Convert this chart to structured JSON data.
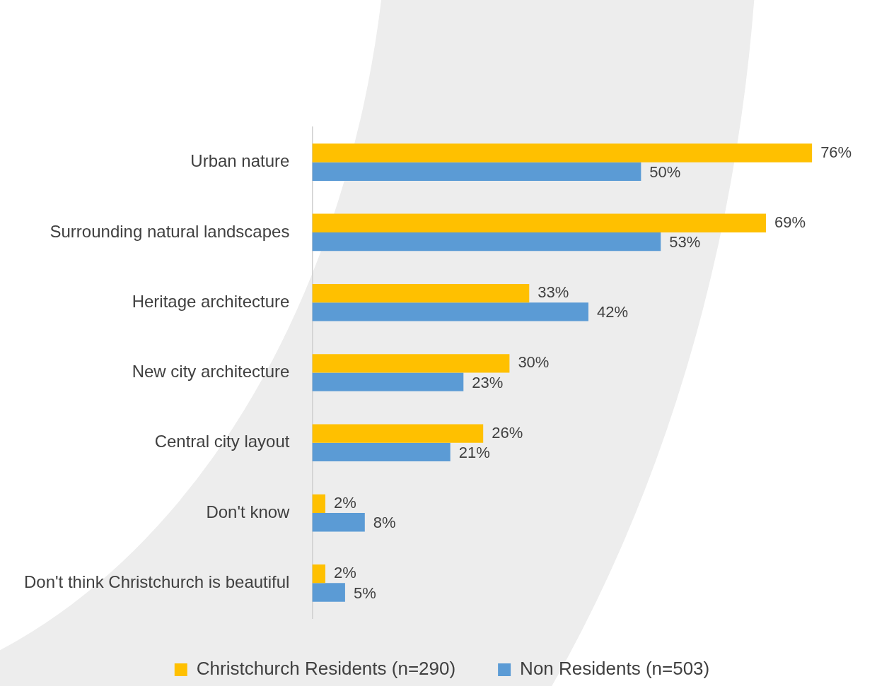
{
  "chart_data": {
    "type": "bar",
    "orientation": "horizontal",
    "categories": [
      "Urban nature",
      "Surrounding natural landscapes",
      "Heritage architecture",
      "New city architecture",
      "Central city layout",
      "Don't know",
      "Don't think Christchurch is beautiful"
    ],
    "series": [
      {
        "name": "Christchurch Residents (n=290)",
        "color": "#ffc000",
        "values": [
          76,
          69,
          33,
          30,
          26,
          2,
          2
        ],
        "value_labels": [
          "76%",
          "69%",
          "33%",
          "30%",
          "26%",
          "2%",
          "2%"
        ]
      },
      {
        "name": "Non Residents (n=503)",
        "color": "#5b9bd5",
        "values": [
          50,
          53,
          42,
          23,
          21,
          8,
          5
        ],
        "value_labels": [
          "50%",
          "53%",
          "42%",
          "23%",
          "21%",
          "8%",
          "5%"
        ]
      }
    ],
    "legend": "bottom"
  }
}
